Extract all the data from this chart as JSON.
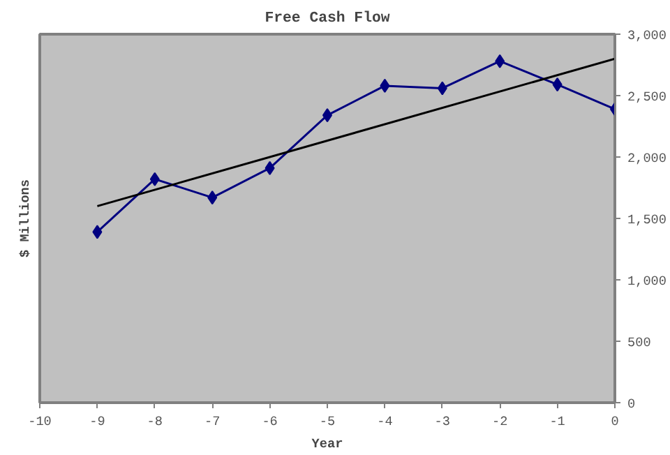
{
  "chart_data": {
    "type": "line",
    "title": "Free Cash Flow",
    "xlabel": "Year",
    "ylabel": "$ Millions",
    "xlim": [
      -10,
      0
    ],
    "xticks": [
      -10,
      -9,
      -8,
      -7,
      -6,
      -5,
      -4,
      -3,
      -2,
      -1,
      0
    ],
    "ylim": [
      0,
      3000
    ],
    "yticks": [
      0,
      500,
      {
        "value": 1000,
        "label": "1,000"
      },
      {
        "value": 1500,
        "label": "1,500"
      },
      {
        "value": 2000,
        "label": "2,000"
      },
      {
        "value": 2500,
        "label": "2,500"
      },
      {
        "value": 3000,
        "label": "3,000"
      }
    ],
    "grid": false,
    "series": [
      {
        "color": "#000080",
        "marker": "diamond",
        "x": [
          -9,
          -8,
          -7,
          -6,
          -5,
          -4,
          -3,
          -2,
          -1,
          0
        ],
        "values": [
          1390,
          1820,
          1670,
          1910,
          2340,
          2580,
          2560,
          2780,
          2590,
          2390
        ]
      },
      {
        "color": "#000000",
        "marker": "none",
        "x": [
          -9,
          0
        ],
        "values": [
          1600,
          2800
        ]
      }
    ]
  }
}
